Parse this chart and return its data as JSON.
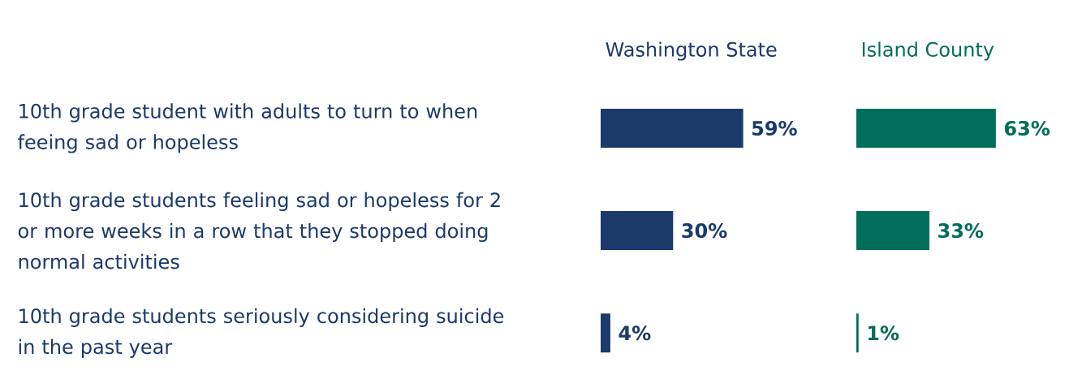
{
  "chart_data": [
    {
      "type": "bar",
      "orientation": "horizontal",
      "title": "Washington State",
      "tick_labels": "y",
      "categories": [
        "10th grade student with adults to turn to when feeing sad or hopeless",
        "10th grade students feeling sad or hopeless for 2 or more weeks in a row that they stopped doing normal activities",
        "10th grade students seriously considering suicide in the past year"
      ],
      "values": [
        59,
        30,
        4
      ],
      "color": "#1b3a6b",
      "value_labels": [
        "59%",
        "30%",
        "4%"
      ]
    },
    {
      "type": "bar",
      "orientation": "horizontal",
      "title": "Island County",
      "tick_labels": false,
      "categories": [
        null,
        null,
        null
      ],
      "values": [
        63,
        33,
        1
      ],
      "color": "#006e5a",
      "value_labels": [
        "63%",
        "33%",
        "1%"
      ]
    }
  ]
}
